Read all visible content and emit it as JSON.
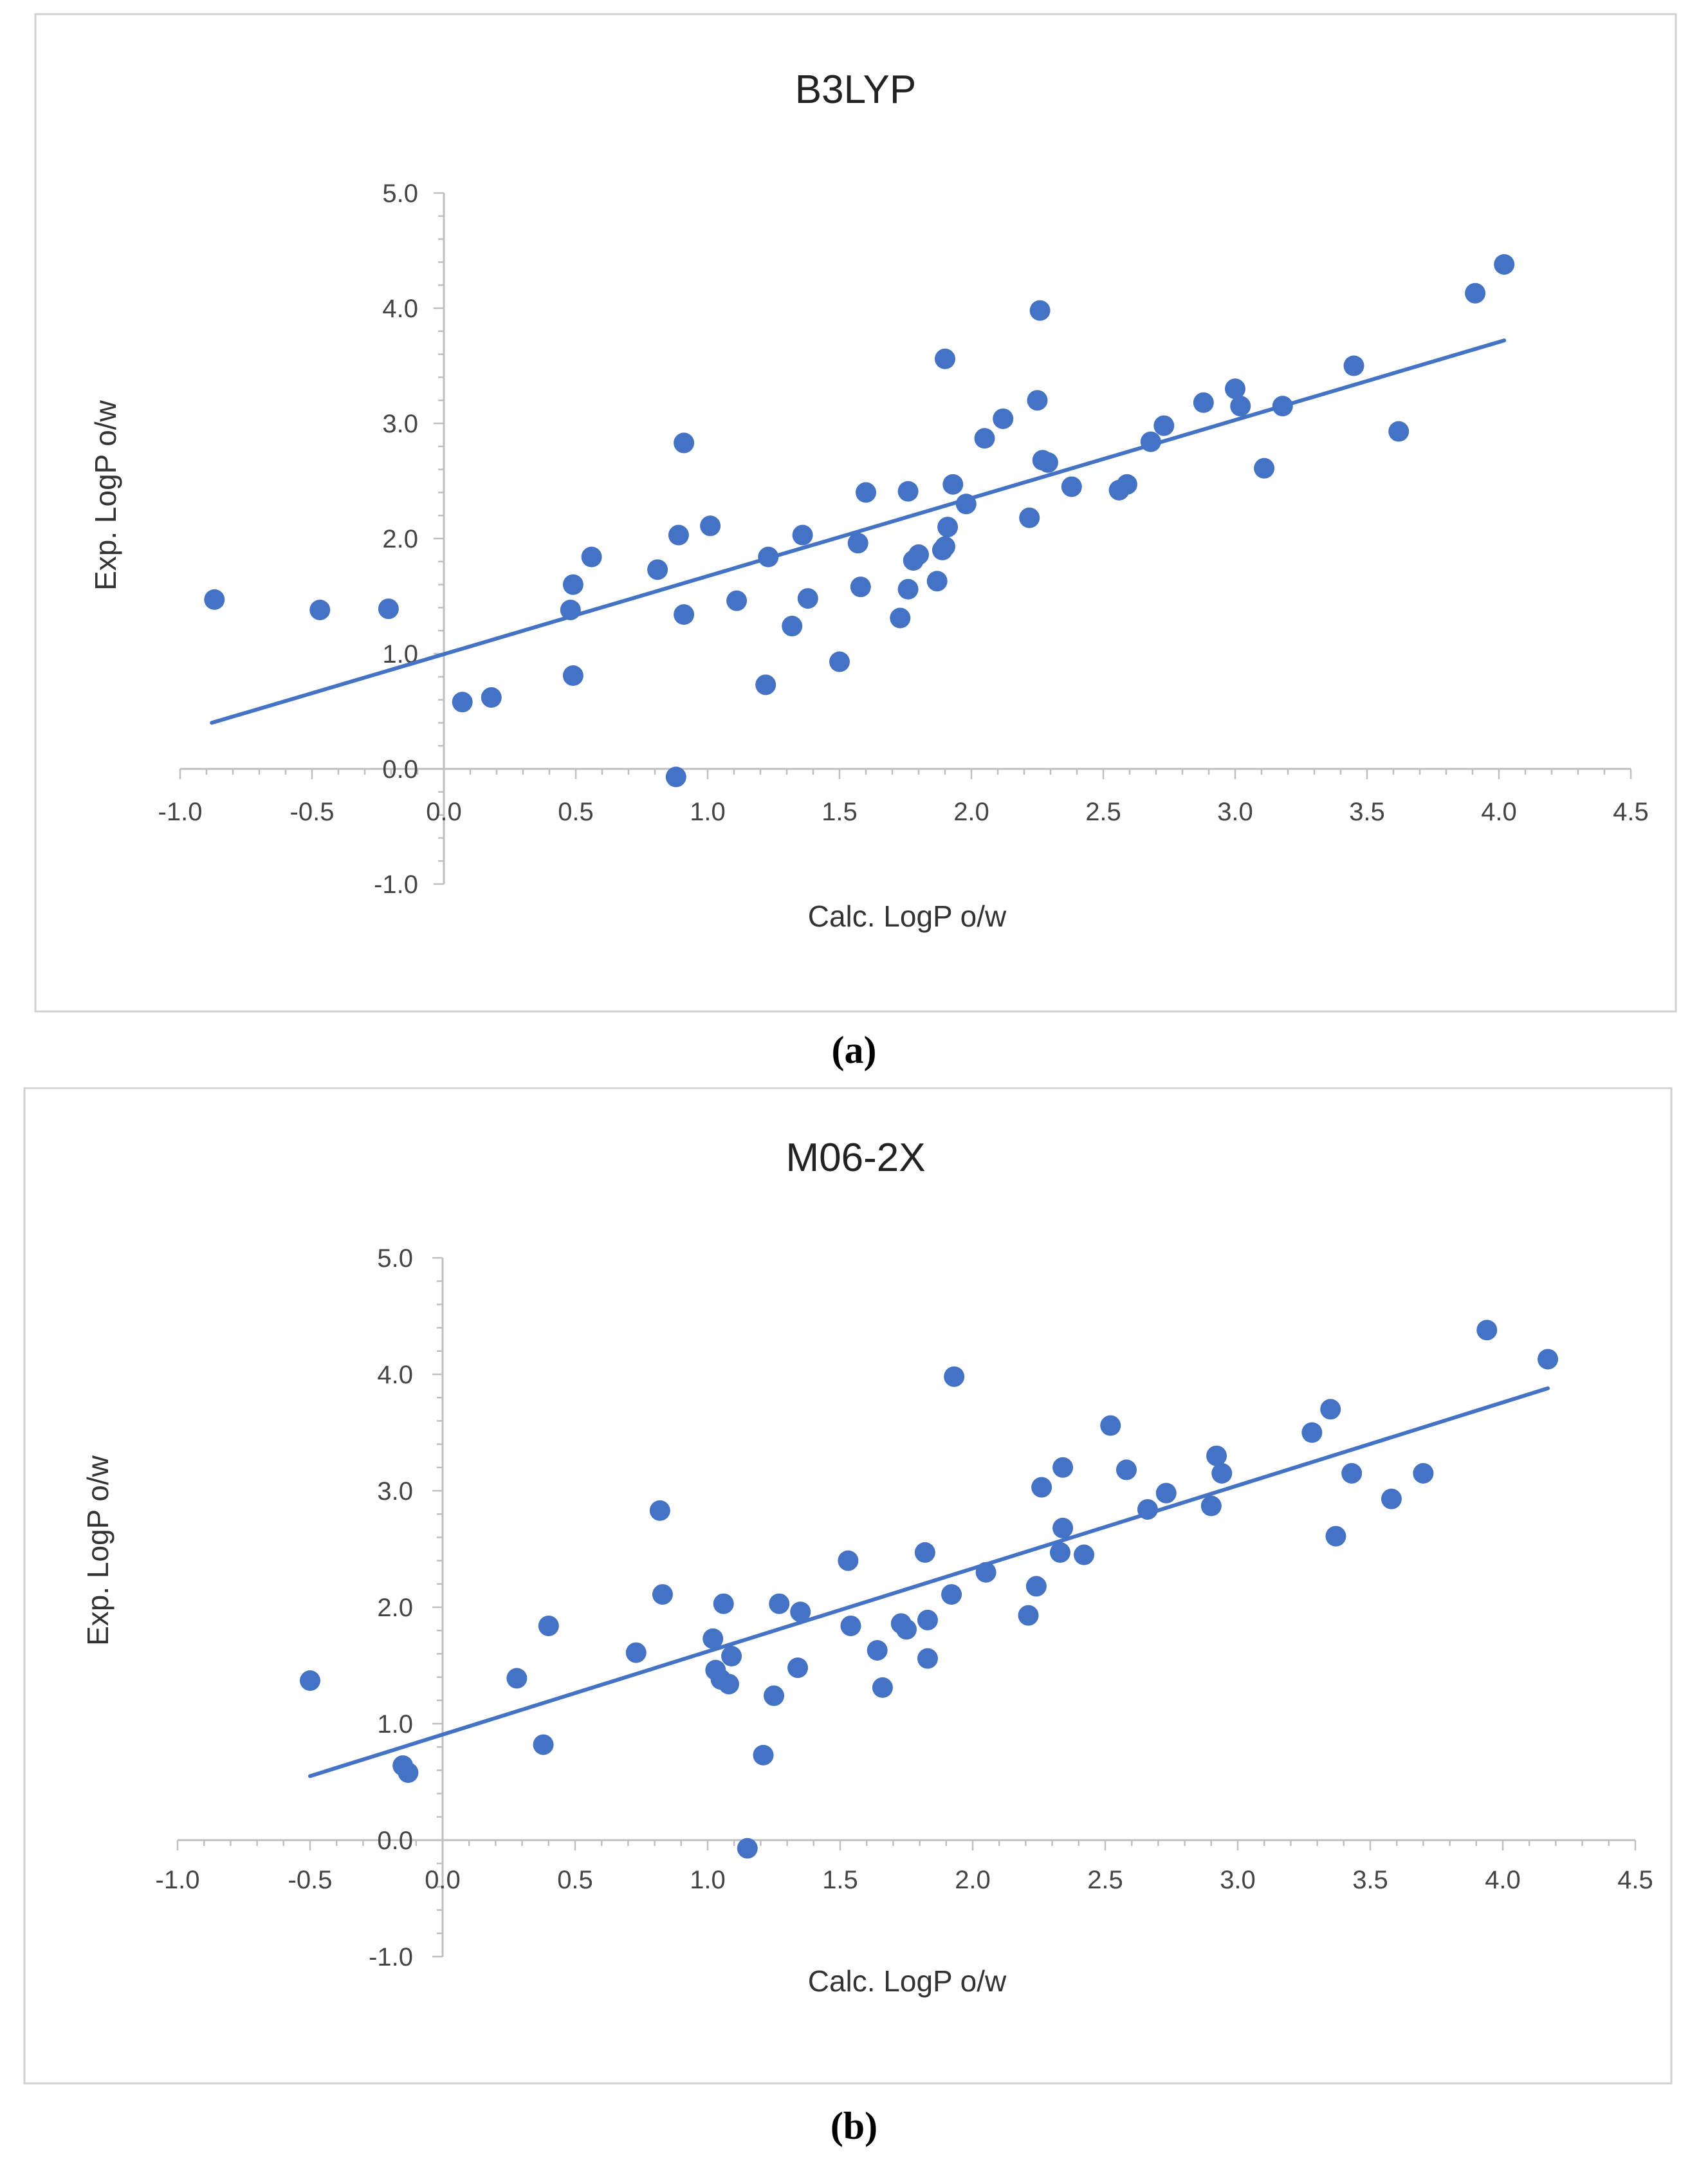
{
  "chart_data": [
    {
      "type": "scatter",
      "title": "B3LYP",
      "xlabel": "Calc. LogP o/w",
      "ylabel": "Exp. LogP o/w",
      "xlim": [
        -1.0,
        4.5
      ],
      "ylim": [
        -1.0,
        5.0
      ],
      "x_ticks": [
        "-1.0",
        "-0.5",
        "0.0",
        "0.5",
        "1.0",
        "1.5",
        "2.0",
        "2.5",
        "3.0",
        "3.5",
        "4.0",
        "4.5"
      ],
      "y_ticks": [
        "5.0",
        "4.0",
        "3.0",
        "2.0",
        "1.0",
        "0.0",
        "-1.0"
      ],
      "marker_color": "#4472C4",
      "trendline": {
        "x": [
          -0.88,
          4.02
        ],
        "y": [
          0.4,
          3.72
        ]
      },
      "points": [
        [
          -0.87,
          1.47
        ],
        [
          -0.47,
          1.38
        ],
        [
          -0.21,
          1.39
        ],
        [
          0.07,
          0.58
        ],
        [
          0.18,
          0.62
        ],
        [
          0.48,
          1.38
        ],
        [
          0.49,
          1.6
        ],
        [
          0.49,
          0.81
        ],
        [
          0.56,
          1.84
        ],
        [
          0.81,
          1.73
        ],
        [
          0.88,
          -0.07
        ],
        [
          0.89,
          2.03
        ],
        [
          0.91,
          1.34
        ],
        [
          0.91,
          2.83
        ],
        [
          1.01,
          2.11
        ],
        [
          1.11,
          1.46
        ],
        [
          1.22,
          0.73
        ],
        [
          1.23,
          1.84
        ],
        [
          1.32,
          1.24
        ],
        [
          1.36,
          2.03
        ],
        [
          1.38,
          1.48
        ],
        [
          1.5,
          0.93
        ],
        [
          1.57,
          1.96
        ],
        [
          1.58,
          1.58
        ],
        [
          1.6,
          2.4
        ],
        [
          1.73,
          1.31
        ],
        [
          1.76,
          2.41
        ],
        [
          1.76,
          1.56
        ],
        [
          1.78,
          1.81
        ],
        [
          1.8,
          1.86
        ],
        [
          1.87,
          1.63
        ],
        [
          1.89,
          1.9
        ],
        [
          1.9,
          3.56
        ],
        [
          1.9,
          1.93
        ],
        [
          1.91,
          2.1
        ],
        [
          1.93,
          2.47
        ],
        [
          1.98,
          2.3
        ],
        [
          2.05,
          2.87
        ],
        [
          2.12,
          3.04
        ],
        [
          2.22,
          2.18
        ],
        [
          2.25,
          3.2
        ],
        [
          2.26,
          3.98
        ],
        [
          2.27,
          2.68
        ],
        [
          2.29,
          2.66
        ],
        [
          2.38,
          2.45
        ],
        [
          2.56,
          2.42
        ],
        [
          2.59,
          2.47
        ],
        [
          2.68,
          2.84
        ],
        [
          2.73,
          2.98
        ],
        [
          2.88,
          3.18
        ],
        [
          3.0,
          3.3
        ],
        [
          3.02,
          3.15
        ],
        [
          3.11,
          2.61
        ],
        [
          3.18,
          3.15
        ],
        [
          3.45,
          3.5
        ],
        [
          3.62,
          2.93
        ],
        [
          3.91,
          4.13
        ],
        [
          4.02,
          4.38
        ]
      ]
    },
    {
      "type": "scatter",
      "title": "M06-2X",
      "xlabel": "Calc. LogP o/w",
      "ylabel": "Exp. LogP o/w",
      "xlim": [
        -1.0,
        4.5
      ],
      "ylim": [
        -1.0,
        5.0
      ],
      "x_ticks": [
        "-1.0",
        "-0.5",
        "0.0",
        "0.5",
        "1.0",
        "1.5",
        "2.0",
        "2.5",
        "3.0",
        "3.5",
        "4.0",
        "4.5"
      ],
      "y_ticks": [
        "5.0",
        "4.0",
        "3.0",
        "2.0",
        "1.0",
        "0.0",
        "-1.0"
      ],
      "marker_color": "#4472C4",
      "trendline": {
        "x": [
          -0.5,
          4.17
        ],
        "y": [
          0.55,
          3.88
        ]
      },
      "points": [
        [
          -0.5,
          1.37
        ],
        [
          -0.15,
          0.64
        ],
        [
          -0.13,
          0.58
        ],
        [
          0.28,
          1.39
        ],
        [
          0.38,
          0.82
        ],
        [
          0.4,
          1.84
        ],
        [
          0.73,
          1.61
        ],
        [
          0.82,
          2.83
        ],
        [
          0.83,
          2.11
        ],
        [
          1.02,
          1.73
        ],
        [
          1.03,
          1.46
        ],
        [
          1.05,
          1.38
        ],
        [
          1.06,
          2.03
        ],
        [
          1.08,
          1.34
        ],
        [
          1.09,
          1.58
        ],
        [
          1.15,
          -0.07
        ],
        [
          1.21,
          0.73
        ],
        [
          1.25,
          1.24
        ],
        [
          1.27,
          2.03
        ],
        [
          1.34,
          1.48
        ],
        [
          1.35,
          1.96
        ],
        [
          1.53,
          2.4
        ],
        [
          1.54,
          1.84
        ],
        [
          1.64,
          1.63
        ],
        [
          1.66,
          1.31
        ],
        [
          1.73,
          1.86
        ],
        [
          1.75,
          1.81
        ],
        [
          1.82,
          2.47
        ],
        [
          1.83,
          1.89
        ],
        [
          1.83,
          1.56
        ],
        [
          1.92,
          2.11
        ],
        [
          1.93,
          3.98
        ],
        [
          2.05,
          2.3
        ],
        [
          2.21,
          1.93
        ],
        [
          2.24,
          2.18
        ],
        [
          2.26,
          3.03
        ],
        [
          2.33,
          2.47
        ],
        [
          2.34,
          2.68
        ],
        [
          2.34,
          3.2
        ],
        [
          2.42,
          2.45
        ],
        [
          2.52,
          3.56
        ],
        [
          2.58,
          3.18
        ],
        [
          2.66,
          2.84
        ],
        [
          2.73,
          2.98
        ],
        [
          2.9,
          2.87
        ],
        [
          2.92,
          3.3
        ],
        [
          2.94,
          3.15
        ],
        [
          3.28,
          3.5
        ],
        [
          3.35,
          3.7
        ],
        [
          3.37,
          2.61
        ],
        [
          3.43,
          3.15
        ],
        [
          3.58,
          2.93
        ],
        [
          3.7,
          3.15
        ],
        [
          3.94,
          4.38
        ],
        [
          4.17,
          4.13
        ]
      ]
    }
  ],
  "captions": [
    "(a)",
    "(b)"
  ]
}
